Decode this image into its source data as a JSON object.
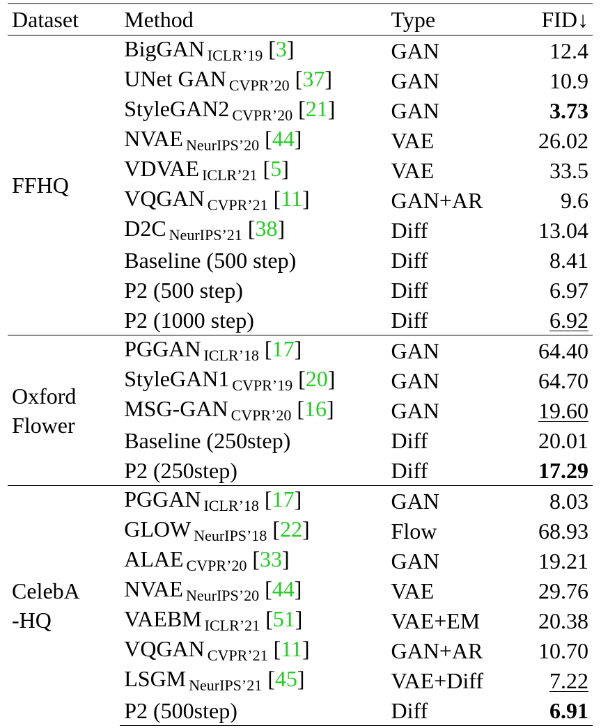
{
  "headers": {
    "dataset": "Dataset",
    "method": "Method",
    "type": "Type",
    "fid": "FID↓"
  },
  "groups": [
    {
      "dataset_lines": [
        "FFHQ"
      ],
      "rows": [
        {
          "method": "BigGAN",
          "venue": "ICLR’19",
          "cite": "3",
          "type": "GAN",
          "fid": "12.4",
          "style": "normal"
        },
        {
          "method": "UNet GAN",
          "venue": "CVPR’20",
          "cite": "37",
          "type": "GAN",
          "fid": "10.9",
          "style": "normal"
        },
        {
          "method": "StyleGAN2",
          "venue": "CVPR’20",
          "cite": "21",
          "type": "GAN",
          "fid": "3.73",
          "style": "bold"
        },
        {
          "method": "NVAE",
          "venue": "NeurIPS’20",
          "cite": "44",
          "type": "VAE",
          "fid": "26.02",
          "style": "normal"
        },
        {
          "method": "VDVAE",
          "venue": "ICLR’21",
          "cite": "5",
          "type": "VAE",
          "fid": "33.5",
          "style": "normal"
        },
        {
          "method": "VQGAN",
          "venue": "CVPR’21",
          "cite": "11",
          "type": "GAN+AR",
          "fid": "9.6",
          "style": "normal"
        },
        {
          "method": "D2C",
          "venue": "NeurIPS’21",
          "cite": "38",
          "type": "Diff",
          "fid": "13.04",
          "style": "normal"
        },
        {
          "method": "Baseline (500 step)",
          "venue": "",
          "cite": "",
          "type": "Diff",
          "fid": "8.41",
          "style": "normal"
        },
        {
          "method": "P2 (500 step)",
          "venue": "",
          "cite": "",
          "type": "Diff",
          "fid": "6.97",
          "style": "normal"
        },
        {
          "method": "P2 (1000 step)",
          "venue": "",
          "cite": "",
          "type": "Diff",
          "fid": "6.92",
          "style": "underline"
        }
      ]
    },
    {
      "dataset_lines": [
        "Oxford",
        "Flower"
      ],
      "rows": [
        {
          "method": "PGGAN",
          "venue": "ICLR’18",
          "cite": "17",
          "type": "GAN",
          "fid": "64.40",
          "style": "normal"
        },
        {
          "method": "StyleGAN1",
          "venue": "CVPR’19",
          "cite": "20",
          "type": "GAN",
          "fid": "64.70",
          "style": "normal"
        },
        {
          "method": "MSG-GAN",
          "venue": "CVPR’20",
          "cite": "16",
          "type": "GAN",
          "fid": "19.60",
          "style": "underline"
        },
        {
          "method": "Baseline (250step)",
          "venue": "",
          "cite": "",
          "type": "Diff",
          "fid": "20.01",
          "style": "normal"
        },
        {
          "method": "P2 (250step)",
          "venue": "",
          "cite": "",
          "type": "Diff",
          "fid": "17.29",
          "style": "bold"
        }
      ]
    },
    {
      "dataset_lines": [
        "CelebA",
        "-HQ"
      ],
      "rows": [
        {
          "method": "PGGAN",
          "venue": "ICLR’18",
          "cite": "17",
          "type": "GAN",
          "fid": "8.03",
          "style": "normal"
        },
        {
          "method": "GLOW",
          "venue": "NeurIPS’18",
          "cite": "22",
          "type": "Flow",
          "fid": "68.93",
          "style": "normal"
        },
        {
          "method": "ALAE",
          "venue": "CVPR’20",
          "cite": "33",
          "type": "GAN",
          "fid": "19.21",
          "style": "normal"
        },
        {
          "method": "NVAE",
          "venue": "NeurIPS’20",
          "cite": "44",
          "type": "VAE",
          "fid": "29.76",
          "style": "normal"
        },
        {
          "method": "VAEBM",
          "venue": "ICLR’21",
          "cite": "51",
          "type": "VAE+EM",
          "fid": "20.38",
          "style": "normal"
        },
        {
          "method": "VQGAN",
          "venue": "CVPR’21",
          "cite": "11",
          "type": "GAN+AR",
          "fid": "10.70",
          "style": "normal"
        },
        {
          "method": "LSGM",
          "venue": "NeurIPS’21",
          "cite": "45",
          "type": "VAE+Diff",
          "fid": "7.22",
          "style": "underline"
        },
        {
          "method": "P2 (500step)",
          "venue": "",
          "cite": "",
          "type": "Diff",
          "fid": "6.91",
          "style": "bold"
        }
      ]
    }
  ],
  "colors": {
    "citation": "#22cc22",
    "text": "#000000"
  }
}
